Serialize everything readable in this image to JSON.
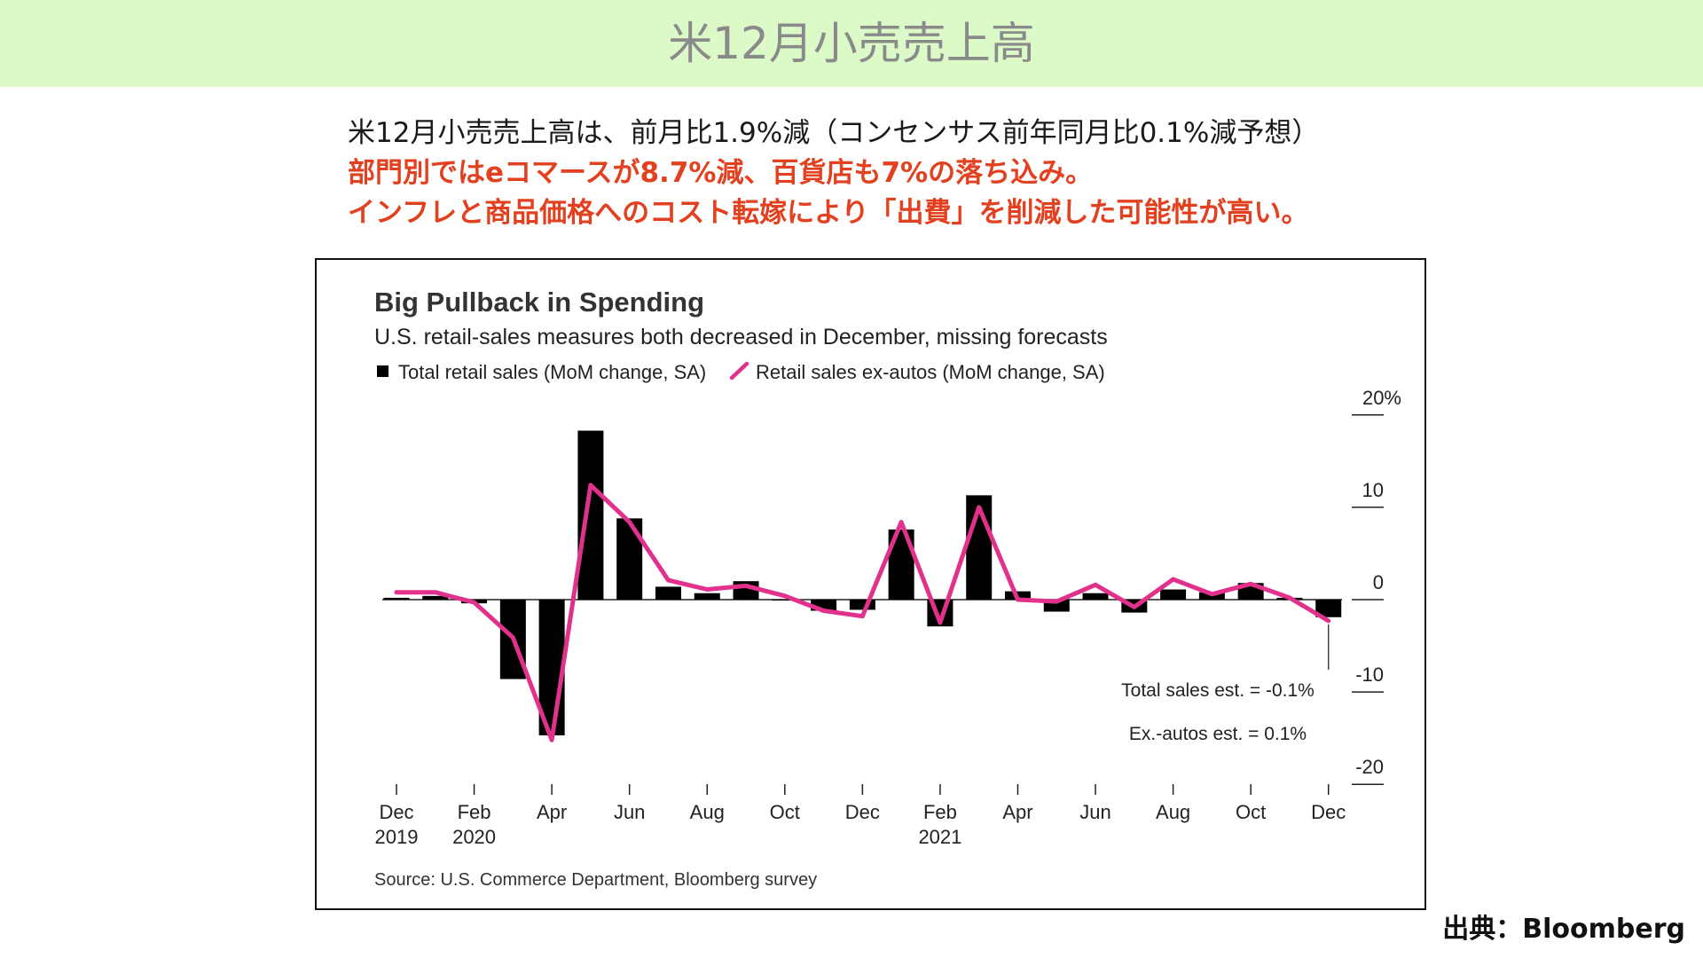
{
  "header": {
    "title": "米12月小売売上高"
  },
  "summary": {
    "line1": "米12月小売売上高は、前月比1.9%減（コンセンサス前年同月比0.1%減予想）",
    "line2": "部門別ではeコマースが8.7%減、百貨店も7%の落ち込み。",
    "line3": "インフレと商品価格へのコスト転嫁により「出費」を削減した可能性が高い。"
  },
  "colors": {
    "header_bg": "#dcfac8",
    "header_text": "#8a8a8a",
    "accent_red": "#e2401f"
  },
  "chart_data": {
    "type": "bar",
    "title": "Big Pullback in Spending",
    "subtitle": "U.S. retail-sales measures both decreased in December, missing forecasts",
    "x": [
      "2019-12",
      "2020-01",
      "2020-02",
      "2020-03",
      "2020-04",
      "2020-05",
      "2020-06",
      "2020-07",
      "2020-08",
      "2020-09",
      "2020-10",
      "2020-11",
      "2020-12",
      "2021-01",
      "2021-02",
      "2021-03",
      "2021-04",
      "2021-05",
      "2021-06",
      "2021-07",
      "2021-08",
      "2021-09",
      "2021-10",
      "2021-11",
      "2021-12"
    ],
    "series": [
      {
        "name": "Total retail sales (MoM change, SA)",
        "type": "bar",
        "color": "#000000",
        "values": [
          0.2,
          0.4,
          -0.4,
          -8.6,
          -14.7,
          18.3,
          8.8,
          1.4,
          0.7,
          2.0,
          -0.1,
          -1.2,
          -1.1,
          7.6,
          -2.9,
          11.3,
          0.9,
          -1.3,
          0.7,
          -1.4,
          1.1,
          0.8,
          1.8,
          0.2,
          -1.9
        ]
      },
      {
        "name": "Retail sales ex-autos (MoM change, SA)",
        "type": "line",
        "color": "#e2318c",
        "values": [
          0.8,
          0.8,
          -0.3,
          -4.1,
          -15.2,
          12.4,
          8.4,
          2.1,
          1.1,
          1.5,
          0.4,
          -1.2,
          -1.8,
          8.4,
          -2.5,
          10.0,
          0.0,
          -0.2,
          1.6,
          -0.8,
          2.2,
          0.6,
          1.7,
          0.2,
          -2.3
        ]
      }
    ],
    "ylim": [
      -20,
      20
    ],
    "yticks": [
      {
        "value": 20,
        "label": "20%"
      },
      {
        "value": 10,
        "label": "10"
      },
      {
        "value": 0,
        "label": "0"
      },
      {
        "value": -10,
        "label": "-10"
      },
      {
        "value": -20,
        "label": "-20"
      }
    ],
    "xticks": [
      {
        "at": "2019-12",
        "month": "Dec",
        "year": "2019"
      },
      {
        "at": "2020-02",
        "month": "Feb",
        "year": "2020"
      },
      {
        "at": "2020-04",
        "month": "Apr"
      },
      {
        "at": "2020-06",
        "month": "Jun"
      },
      {
        "at": "2020-08",
        "month": "Aug"
      },
      {
        "at": "2020-10",
        "month": "Oct"
      },
      {
        "at": "2020-12",
        "month": "Dec"
      },
      {
        "at": "2021-02",
        "month": "Feb",
        "year": "2021"
      },
      {
        "at": "2021-04",
        "month": "Apr"
      },
      {
        "at": "2021-06",
        "month": "Jun"
      },
      {
        "at": "2021-08",
        "month": "Aug"
      },
      {
        "at": "2021-10",
        "month": "Oct"
      },
      {
        "at": "2021-12",
        "month": "Dec"
      }
    ],
    "grid": false,
    "legend_position": "top-left",
    "annotations": [
      {
        "text": "Total sales est. = -0.1%"
      },
      {
        "text": "Ex.-autos est. = 0.1%"
      }
    ],
    "callout_at": "2021-12",
    "source": "Source: U.S. Commerce Department, Bloomberg survey"
  },
  "credit": "出典：Bloomberg"
}
